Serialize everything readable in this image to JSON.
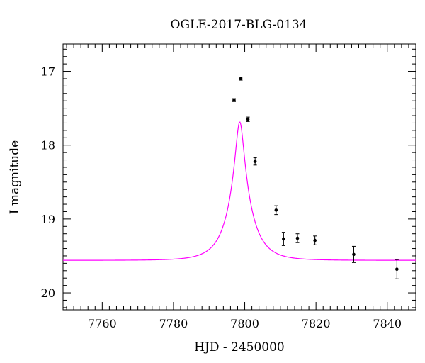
{
  "chart_data": {
    "type": "scatter",
    "title": "OGLE-2017-BLG-0134",
    "xlabel": "HJD - 2450000",
    "ylabel": "I magnitude",
    "xlim": [
      7749,
      7848
    ],
    "ylim": [
      20.23,
      16.63
    ],
    "y_inverted": true,
    "grid": false,
    "xticks": [
      7760,
      7780,
      7800,
      7820,
      7840
    ],
    "yticks": [
      17,
      18,
      19,
      20
    ],
    "series": [
      {
        "kind": "points_with_errorbars",
        "color": "#000000",
        "points": [
          {
            "x": 7797.0,
            "y": 17.39,
            "err": 0.02
          },
          {
            "x": 7798.9,
            "y": 17.1,
            "err": 0.02
          },
          {
            "x": 7800.9,
            "y": 17.65,
            "err": 0.03
          },
          {
            "x": 7802.9,
            "y": 18.22,
            "err": 0.05
          },
          {
            "x": 7808.8,
            "y": 18.88,
            "err": 0.06
          },
          {
            "x": 7810.9,
            "y": 19.27,
            "err": 0.09
          },
          {
            "x": 7814.8,
            "y": 19.26,
            "err": 0.06
          },
          {
            "x": 7819.7,
            "y": 19.29,
            "err": 0.06
          },
          {
            "x": 7830.6,
            "y": 19.48,
            "err": 0.11
          },
          {
            "x": 7842.7,
            "y": 19.68,
            "err": 0.13
          }
        ]
      },
      {
        "kind": "model_curve",
        "color": "#ff00ff",
        "model": "paczynski",
        "t0": 7798.6,
        "tE": 6.0,
        "u0": 0.18,
        "baseline_mag": 19.56
      }
    ]
  }
}
